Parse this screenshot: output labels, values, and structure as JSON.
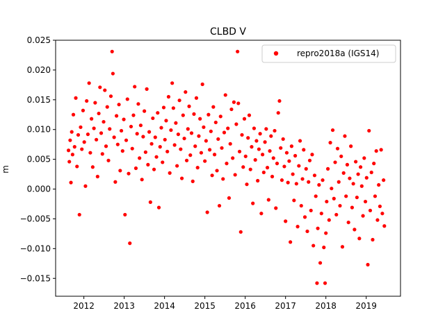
{
  "chart_data": {
    "type": "scatter",
    "title": "CLBD V",
    "xlabel": "",
    "ylabel": "m",
    "xlim": [
      2011.3,
      2019.85
    ],
    "ylim": [
      -0.018,
      0.025
    ],
    "x_ticks": [
      2012,
      2013,
      2014,
      2015,
      2016,
      2017,
      2018,
      2019
    ],
    "x_tick_labels": [
      "2012",
      "2013",
      "2014",
      "2015",
      "2016",
      "2017",
      "2018",
      "2019"
    ],
    "y_ticks": [
      -0.015,
      -0.01,
      -0.005,
      0.0,
      0.005,
      0.01,
      0.015,
      0.02,
      0.025
    ],
    "y_tick_labels": [
      "−0.015",
      "−0.010",
      "−0.005",
      "0.000",
      "0.005",
      "0.010",
      "0.015",
      "0.020",
      "0.025"
    ],
    "grid": false,
    "legend_position": "top-right",
    "marker_color": "#ff0000",
    "series": [
      {
        "name": "repro2018a (IGS14)",
        "color": "#ff0000",
        "points": [
          [
            2011.62,
            0.0065
          ],
          [
            2011.64,
            0.0046
          ],
          [
            2011.66,
            0.0082
          ],
          [
            2011.68,
            0.0011
          ],
          [
            2011.7,
            0.0096
          ],
          [
            2011.72,
            0.0058
          ],
          [
            2011.74,
            0.0125
          ],
          [
            2011.77,
            0.0071
          ],
          [
            2011.8,
            0.0153
          ],
          [
            2011.83,
            0.0038
          ],
          [
            2011.86,
            0.0091
          ],
          [
            2011.89,
            -0.0043
          ],
          [
            2011.92,
            0.0104
          ],
          [
            2011.95,
            0.0067
          ],
          [
            2011.98,
            0.0132
          ],
          [
            2012.01,
            0.0079
          ],
          [
            2012.04,
            0.0005
          ],
          [
            2012.07,
            0.0148
          ],
          [
            2012.1,
            0.0092
          ],
          [
            2012.13,
            0.0178
          ],
          [
            2012.16,
            0.0061
          ],
          [
            2012.19,
            0.0118
          ],
          [
            2012.22,
            0.0037
          ],
          [
            2012.25,
            0.0102
          ],
          [
            2012.28,
            0.0145
          ],
          [
            2012.31,
            0.0083
          ],
          [
            2012.34,
            0.0021
          ],
          [
            2012.37,
            0.0127
          ],
          [
            2012.4,
            0.0171
          ],
          [
            2012.43,
            0.0094
          ],
          [
            2012.46,
            0.0059
          ],
          [
            2012.49,
            0.0113
          ],
          [
            2012.52,
            0.0166
          ],
          [
            2012.55,
            0.0072
          ],
          [
            2012.58,
            0.0138
          ],
          [
            2012.61,
            0.0048
          ],
          [
            2012.64,
            0.0101
          ],
          [
            2012.67,
            0.0156
          ],
          [
            2012.7,
            0.0231
          ],
          [
            2012.72,
            0.0194
          ],
          [
            2012.75,
            0.0087
          ],
          [
            2012.78,
            0.0012
          ],
          [
            2012.81,
            0.0123
          ],
          [
            2012.84,
            0.0075
          ],
          [
            2012.87,
            0.0142
          ],
          [
            2012.9,
            0.0031
          ],
          [
            2012.93,
            0.0098
          ],
          [
            2012.96,
            0.0064
          ],
          [
            2012.99,
            0.0117
          ],
          [
            2013.02,
            -0.0043
          ],
          [
            2013.05,
            0.0082
          ],
          [
            2013.08,
            0.0151
          ],
          [
            2013.11,
            0.0026
          ],
          [
            2013.14,
            -0.0091
          ],
          [
            2013.17,
            0.0105
          ],
          [
            2013.2,
            0.0068
          ],
          [
            2013.23,
            0.0124
          ],
          [
            2013.26,
            0.0172
          ],
          [
            2013.29,
            0.0035
          ],
          [
            2013.32,
            0.0093
          ],
          [
            2013.35,
            0.0143
          ],
          [
            2013.38,
            0.0052
          ],
          [
            2013.41,
            0.0107
          ],
          [
            2013.44,
            0.0016
          ],
          [
            2013.47,
            0.0088
          ],
          [
            2013.5,
            0.0131
          ],
          [
            2013.53,
            0.0062
          ],
          [
            2013.56,
            0.0168
          ],
          [
            2013.59,
            0.0041
          ],
          [
            2013.62,
            0.0096
          ],
          [
            2013.65,
            -0.0022
          ],
          [
            2013.68,
            0.0076
          ],
          [
            2013.71,
            0.0119
          ],
          [
            2013.74,
            0.0033
          ],
          [
            2013.77,
            0.0087
          ],
          [
            2013.8,
            0.0054
          ],
          [
            2013.83,
            0.0128
          ],
          [
            2013.86,
            -0.0031
          ],
          [
            2013.89,
            0.0071
          ],
          [
            2013.92,
            0.0103
          ],
          [
            2013.95,
            0.0045
          ],
          [
            2013.98,
            0.0137
          ],
          [
            2014.01,
            0.0083
          ],
          [
            2014.04,
            0.0115
          ],
          [
            2014.07,
            0.0063
          ],
          [
            2014.1,
            0.0155
          ],
          [
            2014.13,
            0.0027
          ],
          [
            2014.16,
            0.0099
          ],
          [
            2014.19,
            0.0178
          ],
          [
            2014.22,
            0.0136
          ],
          [
            2014.25,
            0.0074
          ],
          [
            2014.28,
            0.0111
          ],
          [
            2014.31,
            0.0039
          ],
          [
            2014.34,
            0.0092
          ],
          [
            2014.37,
            0.0149
          ],
          [
            2014.4,
            0.0067
          ],
          [
            2014.43,
            0.0018
          ],
          [
            2014.46,
            0.0124
          ],
          [
            2014.49,
            0.0085
          ],
          [
            2014.52,
            0.0163
          ],
          [
            2014.55,
            0.0048
          ],
          [
            2014.58,
            0.0101
          ],
          [
            2014.61,
            0.0139
          ],
          [
            2014.64,
            0.0057
          ],
          [
            2014.67,
            0.0094
          ],
          [
            2014.7,
            0.0013
          ],
          [
            2014.73,
            0.0126
          ],
          [
            2014.76,
            0.0072
          ],
          [
            2014.79,
            0.0153
          ],
          [
            2014.82,
            0.0036
          ],
          [
            2014.85,
            0.0089
          ],
          [
            2014.88,
            0.0118
          ],
          [
            2014.91,
            0.0061
          ],
          [
            2014.94,
            0.0176
          ],
          [
            2014.97,
            0.0104
          ],
          [
            2015.0,
            0.0047
          ],
          [
            2015.03,
            0.0081
          ],
          [
            2015.06,
            -0.0039
          ],
          [
            2015.09,
            0.0125
          ],
          [
            2015.12,
            0.0066
          ],
          [
            2015.15,
            0.0097
          ],
          [
            2015.18,
            0.0023
          ],
          [
            2015.21,
            0.0138
          ],
          [
            2015.24,
            0.0058
          ],
          [
            2015.27,
            0.0112
          ],
          [
            2015.3,
            0.0031
          ],
          [
            2015.33,
            0.0084
          ],
          [
            2015.36,
            -0.0028
          ],
          [
            2015.39,
            0.0122
          ],
          [
            2015.42,
            0.0069
          ],
          [
            2015.45,
            0.0017
          ],
          [
            2015.48,
            0.0095
          ],
          [
            2015.51,
            0.0158
          ],
          [
            2015.54,
            0.0043
          ],
          [
            2015.57,
            0.0102
          ],
          [
            2015.6,
            -0.0015
          ],
          [
            2015.63,
            0.0076
          ],
          [
            2015.66,
            0.0134
          ],
          [
            2015.69,
            0.0052
          ],
          [
            2015.72,
            0.0146
          ],
          [
            2015.75,
            0.0024
          ],
          [
            2015.78,
            0.0109
          ],
          [
            2015.81,
            0.0231
          ],
          [
            2015.83,
            0.0144
          ],
          [
            2015.86,
            0.0063
          ],
          [
            2015.89,
            -0.0072
          ],
          [
            2015.92,
            0.0091
          ],
          [
            2015.95,
            0.0037
          ],
          [
            2015.98,
            0.0118
          ],
          [
            2016.01,
            0.0055
          ],
          [
            2016.04,
            0.0008
          ],
          [
            2016.07,
            0.0086
          ],
          [
            2016.1,
            0.0124
          ],
          [
            2016.13,
            0.0033
          ],
          [
            2016.16,
            0.0071
          ],
          [
            2016.19,
            -0.0024
          ],
          [
            2016.22,
            0.0102
          ],
          [
            2016.25,
            0.0049
          ],
          [
            2016.28,
            0.0081
          ],
          [
            2016.31,
            0.0014
          ],
          [
            2016.34,
            0.0067
          ],
          [
            2016.37,
            0.0093
          ],
          [
            2016.4,
            -0.0041
          ],
          [
            2016.43,
            0.0058
          ],
          [
            2016.46,
            0.0028
          ],
          [
            2016.49,
            0.0079
          ],
          [
            2016.52,
            0.0101
          ],
          [
            2016.55,
            0.0036
          ],
          [
            2016.58,
            -0.0018
          ],
          [
            2016.61,
            0.0064
          ],
          [
            2016.64,
            0.0089
          ],
          [
            2016.67,
            0.0021
          ],
          [
            2016.7,
            0.0052
          ],
          [
            2016.73,
            0.0098
          ],
          [
            2016.76,
            -0.0032
          ],
          [
            2016.79,
            0.0043
          ],
          [
            2016.82,
            0.0128
          ],
          [
            2016.85,
            0.0148
          ],
          [
            2016.88,
            0.0069
          ],
          [
            2016.91,
            0.0015
          ],
          [
            2016.94,
            0.0084
          ],
          [
            2016.97,
            0.0038
          ],
          [
            2017.0,
            -0.0054
          ],
          [
            2017.03,
            0.0061
          ],
          [
            2017.06,
            0.0011
          ],
          [
            2017.09,
            0.0047
          ],
          [
            2017.12,
            -0.0089
          ],
          [
            2017.15,
            0.0072
          ],
          [
            2017.18,
            0.0025
          ],
          [
            2017.21,
            -0.0019
          ],
          [
            2017.24,
            0.0056
          ],
          [
            2017.27,
            0.0009
          ],
          [
            2017.3,
            -0.0063
          ],
          [
            2017.33,
            0.0039
          ],
          [
            2017.36,
            0.0081
          ],
          [
            2017.39,
            -0.0028
          ],
          [
            2017.42,
            0.0017
          ],
          [
            2017.45,
            0.0066
          ],
          [
            2017.48,
            -0.0047
          ],
          [
            2017.51,
            0.0034
          ],
          [
            2017.54,
            -0.0071
          ],
          [
            2017.57,
            0.0012
          ],
          [
            2017.6,
            0.0048
          ],
          [
            2017.63,
            -0.0036
          ],
          [
            2017.66,
            0.0058
          ],
          [
            2017.69,
            -0.0095
          ],
          [
            2017.72,
            0.0023
          ],
          [
            2017.75,
            -0.0012
          ],
          [
            2017.78,
            -0.0158
          ],
          [
            2017.8,
            -0.0066
          ],
          [
            2017.83,
            0.0007
          ],
          [
            2017.86,
            -0.0124
          ],
          [
            2017.89,
            -0.0041
          ],
          [
            2017.92,
            0.0015
          ],
          [
            2017.95,
            -0.0098
          ],
          [
            2017.98,
            -0.0158
          ],
          [
            2018.0,
            -0.0074
          ],
          [
            2018.02,
            -0.0021
          ],
          [
            2018.05,
            0.0034
          ],
          [
            2018.08,
            -0.0052
          ],
          [
            2018.11,
            0.0078
          ],
          [
            2018.14,
            0.0001
          ],
          [
            2018.17,
            0.0099
          ],
          [
            2018.2,
            -0.0016
          ],
          [
            2018.23,
            0.0045
          ],
          [
            2018.26,
            -0.0043
          ],
          [
            2018.29,
            0.0068
          ],
          [
            2018.32,
            0.0012
          ],
          [
            2018.35,
            -0.0028
          ],
          [
            2018.38,
            0.0055
          ],
          [
            2018.41,
            -0.0097
          ],
          [
            2018.44,
            0.0027
          ],
          [
            2018.47,
            0.0089
          ],
          [
            2018.5,
            -0.0012
          ],
          [
            2018.53,
            0.0041
          ],
          [
            2018.56,
            -0.0056
          ],
          [
            2018.59,
            0.0018
          ],
          [
            2018.62,
            0.0072
          ],
          [
            2018.65,
            -0.0031
          ],
          [
            2018.68,
            0.0009
          ],
          [
            2018.71,
            -0.0068
          ],
          [
            2018.74,
            0.0046
          ],
          [
            2018.77,
            -0.0014
          ],
          [
            2018.8,
            0.0025
          ],
          [
            2018.83,
            -0.0083
          ],
          [
            2018.86,
            0.0037
          ],
          [
            2018.89,
            0.0005
          ],
          [
            2018.92,
            -0.0045
          ],
          [
            2018.95,
            0.0052
          ],
          [
            2018.98,
            -0.0021
          ],
          [
            2019.01,
            0.0019
          ],
          [
            2019.04,
            -0.0127
          ],
          [
            2019.07,
            0.0098
          ],
          [
            2019.1,
            -0.0036
          ],
          [
            2019.13,
            0.0028
          ],
          [
            2019.16,
            -0.0085
          ],
          [
            2019.19,
            0.0043
          ],
          [
            2019.22,
            -0.0012
          ],
          [
            2019.25,
            0.0064
          ],
          [
            2019.28,
            -0.0052
          ],
          [
            2019.31,
            0.0007
          ],
          [
            2019.34,
            -0.0029
          ],
          [
            2019.37,
            0.0066
          ],
          [
            2019.4,
            -0.0041
          ],
          [
            2019.43,
            0.0015
          ],
          [
            2019.45,
            -0.0062
          ]
        ]
      }
    ]
  }
}
